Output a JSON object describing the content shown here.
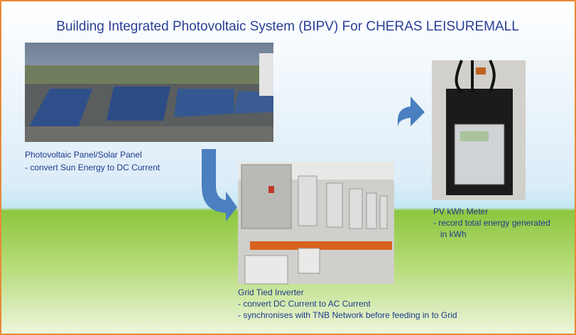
{
  "title": "Building Integrated Photovoltaic System (BIPV) For CHERAS LEISUREMALL",
  "components": [
    {
      "label": "Photovoltaic Panel/Solar Panel",
      "lines": [
        "- convert Sun Energy to DC Current"
      ]
    },
    {
      "label": "Grid Tied Inverter",
      "lines": [
        "- convert DC Current to AC Current",
        "- synchronises with TNB Network before feeding in to Grid"
      ]
    },
    {
      "label": "PV kWh Meter",
      "lines": [
        "- record total energy generated",
        "in kWh"
      ]
    }
  ]
}
